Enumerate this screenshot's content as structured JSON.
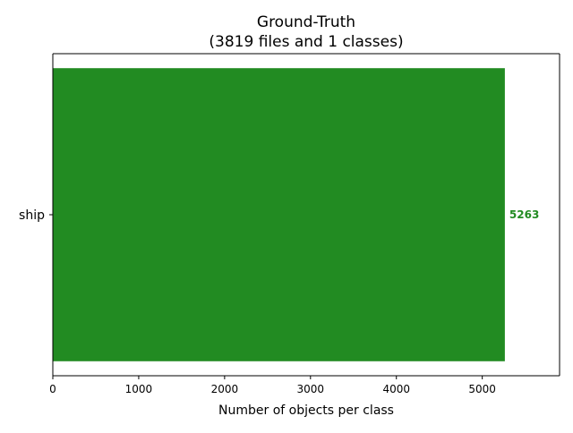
{
  "chart_data": {
    "type": "bar",
    "orientation": "horizontal",
    "title_line1": "Ground-Truth",
    "title_line2": "(3819 files and 1 classes)",
    "xlabel": "Number of objects per class",
    "ylabel": "",
    "categories": [
      "ship"
    ],
    "values": [
      5263
    ],
    "value_labels": [
      "5263"
    ],
    "xlim": [
      0,
      5900
    ],
    "x_ticks": [
      0,
      1000,
      2000,
      3000,
      4000,
      5000
    ],
    "x_tick_labels": [
      "0",
      "1000",
      "2000",
      "3000",
      "4000",
      "5000"
    ],
    "bar_color": "#228b22",
    "value_label_color": "#228b22",
    "grid": false,
    "legend": "none"
  }
}
